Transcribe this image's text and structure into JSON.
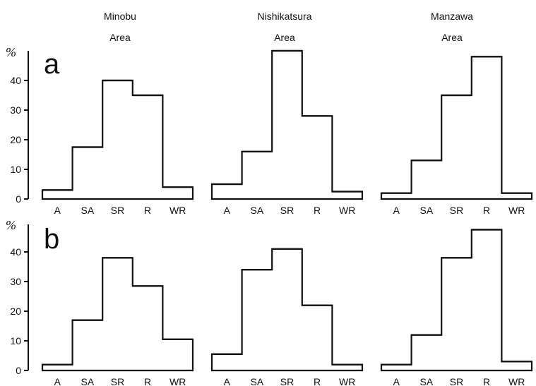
{
  "columns": [
    {
      "name": "Minobu",
      "suffix": "Area"
    },
    {
      "name": "Nishikatsura",
      "suffix": "Area"
    },
    {
      "name": "Manzawa",
      "suffix": "Area"
    }
  ],
  "y_unit": "%",
  "y_ticks": [
    "0",
    "10",
    "20",
    "30",
    "40"
  ],
  "panels": [
    {
      "letter": "a"
    },
    {
      "letter": "b"
    }
  ],
  "chart_data": [
    {
      "type": "step",
      "panel": "a",
      "column": "Minobu Area",
      "categories": [
        "A",
        "SA",
        "SR",
        "R",
        "WR"
      ],
      "values": [
        3,
        17.5,
        40,
        35,
        4
      ],
      "ylim": [
        0,
        50
      ]
    },
    {
      "type": "step",
      "panel": "a",
      "column": "Nishikatsura Area",
      "categories": [
        "A",
        "SA",
        "SR",
        "R",
        "WR"
      ],
      "values": [
        5,
        16,
        50,
        28,
        2.5
      ],
      "ylim": [
        0,
        50
      ]
    },
    {
      "type": "step",
      "panel": "a",
      "column": "Manzawa Area",
      "categories": [
        "A",
        "SA",
        "SR",
        "R",
        "WR"
      ],
      "values": [
        2,
        13,
        35,
        48,
        2
      ],
      "ylim": [
        0,
        50
      ]
    },
    {
      "type": "step",
      "panel": "b",
      "column": "Minobu Area",
      "categories": [
        "A",
        "SA",
        "SR",
        "R",
        "WR"
      ],
      "values": [
        2,
        17,
        38,
        28.5,
        10.5
      ],
      "ylim": [
        0,
        50
      ]
    },
    {
      "type": "step",
      "panel": "b",
      "column": "Nishikatsura Area",
      "categories": [
        "A",
        "SA",
        "SR",
        "R",
        "WR"
      ],
      "values": [
        5.5,
        34,
        41,
        22,
        2
      ],
      "ylim": [
        0,
        50
      ]
    },
    {
      "type": "step",
      "panel": "b",
      "column": "Manzawa Area",
      "categories": [
        "A",
        "SA",
        "SR",
        "R",
        "WR"
      ],
      "values": [
        2,
        12,
        38,
        47.5,
        3
      ],
      "ylim": [
        0,
        50
      ]
    }
  ]
}
